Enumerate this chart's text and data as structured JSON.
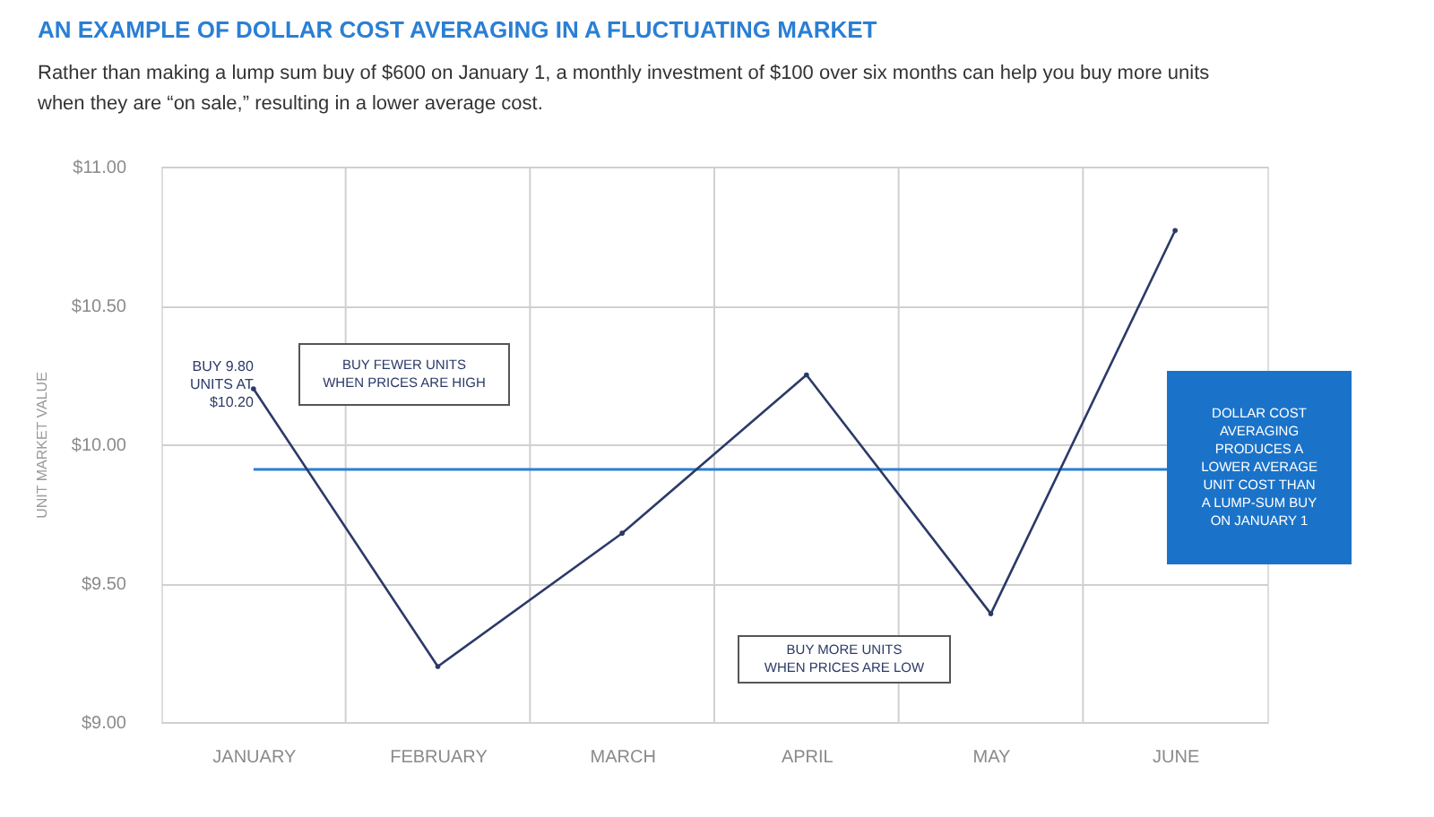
{
  "chart_data": {
    "type": "line",
    "title": "AN EXAMPLE OF DOLLAR COST AVERAGING IN A FLUCTUATING MARKET",
    "subtitle": "Rather than making a lump sum buy of $600 on January 1, a monthly investment of $100 over six months can help you buy more units when they are “on sale,” resulting in a lower average cost.",
    "ylabel": "UNIT MARKET VALUE",
    "categories": [
      "JANUARY",
      "FEBRUARY",
      "MARCH",
      "APRIL",
      "MAY",
      "JUNE"
    ],
    "series": [
      {
        "color": "#2b3a67",
        "values": [
          10.2,
          9.2,
          9.68,
          10.25,
          9.39,
          10.77
        ]
      }
    ],
    "ylim": [
      9,
      11
    ],
    "yticks": [
      {
        "value": 9,
        "label": "$9.00"
      },
      {
        "value": 9.5,
        "label": "$9.50"
      },
      {
        "value": 10,
        "label": "$10.00"
      },
      {
        "value": 10.5,
        "label": "$10.50"
      },
      {
        "value": 11,
        "label": "$11.00"
      }
    ],
    "grid": true,
    "legend": false,
    "marker": "none",
    "line_style": "solid",
    "ref_lines": [
      {
        "axis": "y",
        "value": 9.91,
        "color": "#2a7fd4",
        "label": "DOLLAR COST\nAVERAGING\nPRODUCES A\nLOWER AVERAGE\nUNIT COST THAN\nA LUMP-SUM BUY\nON JANUARY 1"
      }
    ],
    "annotations": [
      {
        "text": "BUY 9.80\nUNITS AT\n$10.20",
        "x": "JANUARY",
        "y": 10.2
      },
      "BUY FEWER UNITS\nWHEN PRICES ARE HIGH",
      "BUY MORE UNITS\nWHEN PRICES ARE LOW"
    ]
  }
}
